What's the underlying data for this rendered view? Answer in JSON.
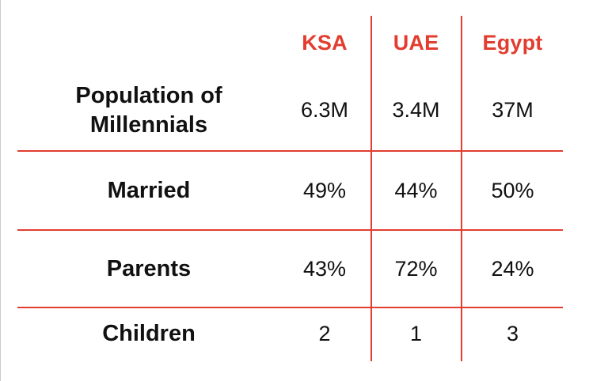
{
  "chart_data": {
    "type": "table",
    "columns": [
      "",
      "KSA",
      "UAE",
      "Egypt"
    ],
    "rows": [
      {
        "label": "Population of Millennials",
        "values": [
          "6.3M",
          "3.4M",
          "37M"
        ]
      },
      {
        "label": "Married",
        "values": [
          "49%",
          "44%",
          "50%"
        ]
      },
      {
        "label": "Parents",
        "values": [
          "43%",
          "72%",
          "24%"
        ]
      },
      {
        "label": "Children",
        "values": [
          "2",
          "1",
          "3"
        ]
      }
    ],
    "grid": true
  },
  "colors": {
    "accent": "#e23d2f",
    "text": "#111111"
  }
}
